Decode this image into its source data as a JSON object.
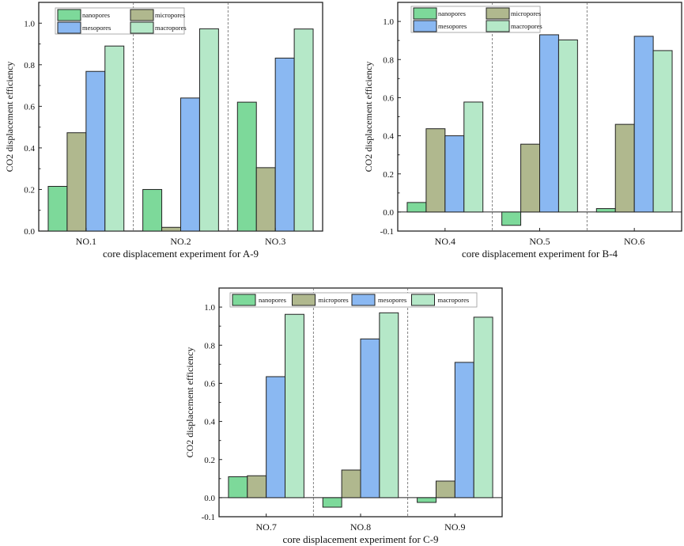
{
  "legend_labels": [
    "nanopores",
    "micropores",
    "mesopores",
    "macropores"
  ],
  "colors": {
    "nanopores": "#7dd99a",
    "micropores": "#b0b88e",
    "mesopores": "#8ab8f2",
    "macropores": "#b5e8c8"
  },
  "chart_data": [
    {
      "type": "bar",
      "title": "",
      "xlabel": "core displacement experiment for A-9",
      "ylabel": "CO2 displacement efficiency",
      "ylim": [
        0,
        1.1
      ],
      "yticks": [
        "0.0",
        "0.2",
        "0.4",
        "0.6",
        "0.8",
        "1.0"
      ],
      "categories": [
        "NO.1",
        "NO.2",
        "NO.3"
      ],
      "legend": "top-left, 2x2",
      "series": [
        {
          "name": "nanopores",
          "values": [
            0.215,
            0.2,
            0.62
          ]
        },
        {
          "name": "micropores",
          "values": [
            0.473,
            0.018,
            0.305
          ]
        },
        {
          "name": "mesopores",
          "values": [
            0.768,
            0.64,
            0.832
          ]
        },
        {
          "name": "macropores",
          "values": [
            0.89,
            0.973,
            0.972
          ]
        }
      ]
    },
    {
      "type": "bar",
      "title": "",
      "xlabel": "core displacement experiment for B-4",
      "ylabel": "CO2 displacement efficiency",
      "ylim": [
        -0.1,
        1.1
      ],
      "yticks": [
        "-0.1",
        "0.0",
        "0.2",
        "0.4",
        "0.6",
        "0.8",
        "1.0"
      ],
      "categories": [
        "NO.4",
        "NO.5",
        "NO.6"
      ],
      "legend": "top-left, 2x2",
      "series": [
        {
          "name": "nanopores",
          "values": [
            0.05,
            -0.07,
            0.018
          ]
        },
        {
          "name": "micropores",
          "values": [
            0.437,
            0.356,
            0.46
          ]
        },
        {
          "name": "mesopores",
          "values": [
            0.4,
            0.93,
            0.922
          ]
        },
        {
          "name": "macropores",
          "values": [
            0.577,
            0.903,
            0.847
          ]
        }
      ]
    },
    {
      "type": "bar",
      "title": "",
      "xlabel": "core displacement experiment for C-9",
      "ylabel": "CO2 displacement efficiency",
      "ylim": [
        -0.1,
        1.1
      ],
      "yticks": [
        "-0.1",
        "0.0",
        "0.2",
        "0.4",
        "0.6",
        "0.8",
        "1.0"
      ],
      "categories": [
        "NO.7",
        "NO.8",
        "NO.9"
      ],
      "legend": "top, single row",
      "series": [
        {
          "name": "nanopores",
          "values": [
            0.11,
            -0.05,
            -0.025
          ]
        },
        {
          "name": "micropores",
          "values": [
            0.115,
            0.145,
            0.087
          ]
        },
        {
          "name": "mesopores",
          "values": [
            0.635,
            0.833,
            0.71
          ]
        },
        {
          "name": "macropores",
          "values": [
            0.962,
            0.97,
            0.947
          ]
        }
      ]
    }
  ]
}
